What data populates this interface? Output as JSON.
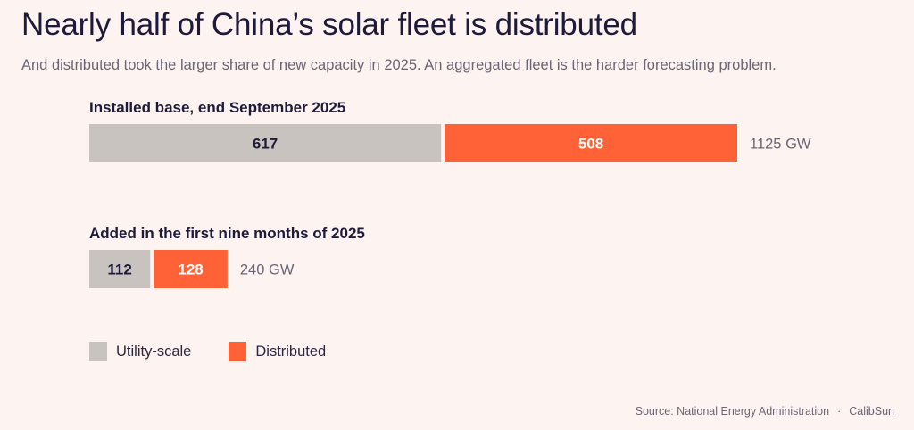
{
  "header": {
    "title": "Nearly half of China’s solar fleet is distributed",
    "subtitle": "And distributed took the larger share of new capacity in 2025. An aggregated fleet is the harder forecasting problem."
  },
  "colors": {
    "utility": "#c9c3bf",
    "distributed": "#ff6236",
    "text_dark": "#1e1b3a",
    "text_muted": "#6b6676"
  },
  "chart_data": [
    {
      "type": "bar",
      "orientation": "horizontal-stacked",
      "title": "Installed base, end September 2025",
      "categories": [
        "Installed base, end September 2025"
      ],
      "series": [
        {
          "name": "Utility-scale",
          "values": [
            617
          ]
        },
        {
          "name": "Distributed",
          "values": [
            508
          ]
        }
      ],
      "total_label": "1125 GW",
      "unit": "GW"
    },
    {
      "type": "bar",
      "orientation": "horizontal-stacked",
      "title": "Added in the first nine months of 2025",
      "categories": [
        "Added in the first nine months of 2025"
      ],
      "series": [
        {
          "name": "Utility-scale",
          "values": [
            112
          ]
        },
        {
          "name": "Distributed",
          "values": [
            128
          ]
        }
      ],
      "total_label": "240 GW",
      "unit": "GW"
    }
  ],
  "legend": {
    "items": [
      {
        "label": "Utility-scale"
      },
      {
        "label": "Distributed"
      }
    ]
  },
  "footer": {
    "source": "Source: National Energy Administration",
    "separator": "·",
    "brand": "CalibSun"
  }
}
